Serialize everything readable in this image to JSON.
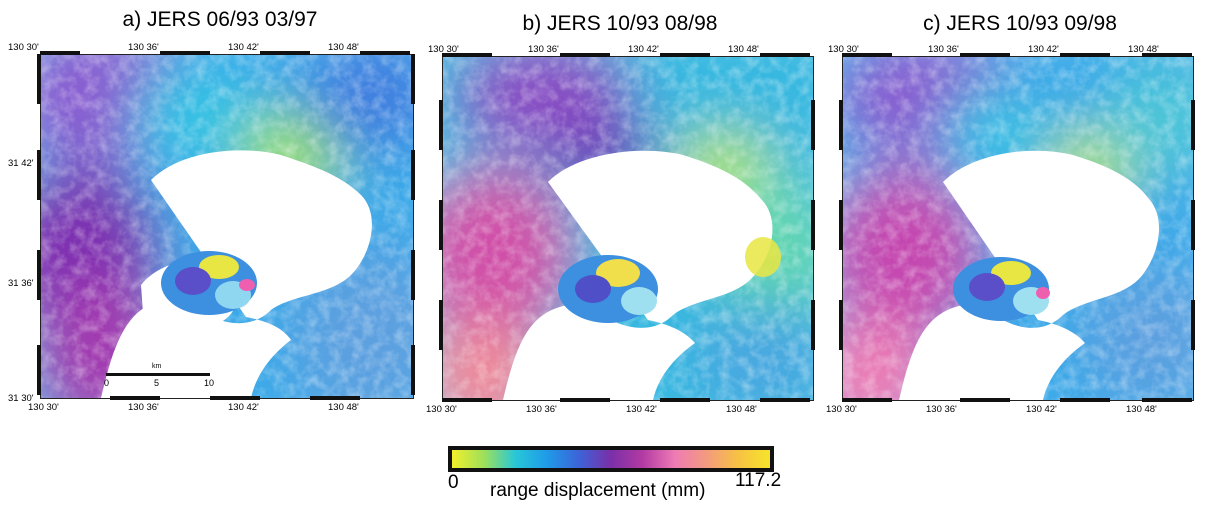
{
  "panels": [
    {
      "title": "a) JERS 06/93 03/97",
      "variant": "a"
    },
    {
      "title": "b) JERS 10/93 08/98",
      "variant": "b"
    },
    {
      "title": "c) JERS 10/93 09/98",
      "variant": "c"
    }
  ],
  "ticks": {
    "top": [
      "130 30'",
      "130 36'",
      "130 42'",
      "130 48'"
    ],
    "bottom": [
      "130 30'",
      "130 36'",
      "130 42'",
      "130 48'"
    ],
    "left": [
      "31 42'",
      "31 36'",
      "31 30'"
    ]
  },
  "scalebar": {
    "unit": "km",
    "labels": [
      "0",
      "5",
      "10"
    ]
  },
  "colorbar": {
    "min_label": "0",
    "max_label": "117.2",
    "caption": "range displacement (mm)",
    "colors": [
      "#f2ef2a",
      "#9ee05a",
      "#27c7d8",
      "#1f9ae8",
      "#3d63d8",
      "#7a2fa8",
      "#b33aa3",
      "#ee7bb4",
      "#f39a7f",
      "#f7c243",
      "#f6e42a"
    ]
  }
}
